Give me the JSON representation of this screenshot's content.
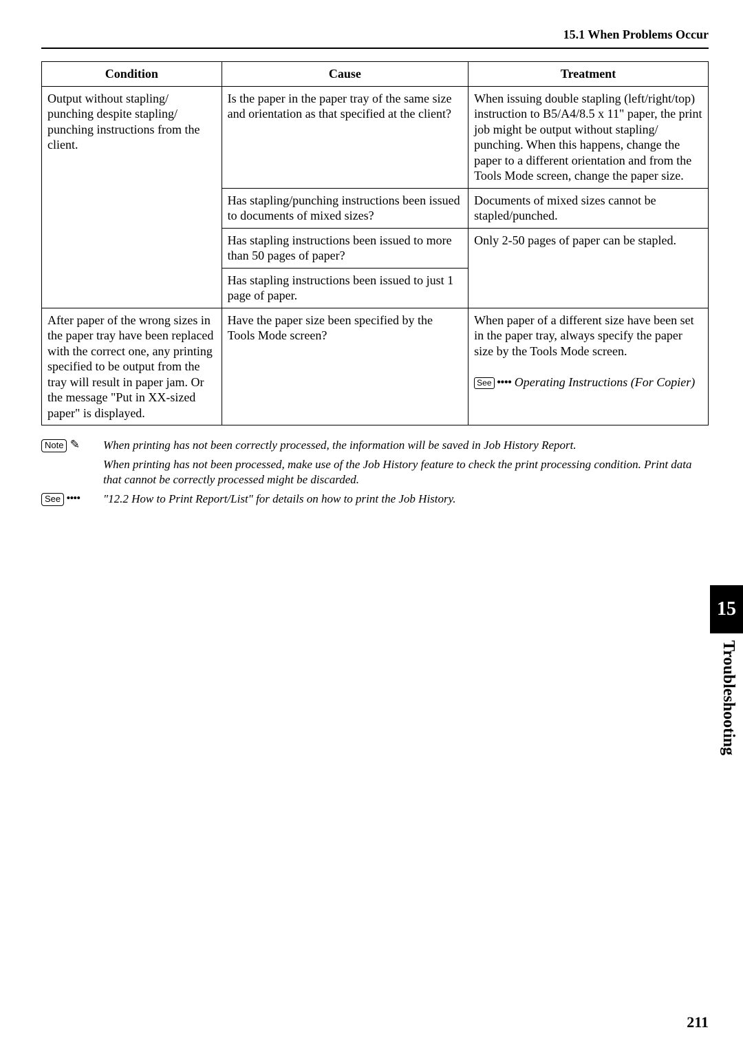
{
  "header": {
    "section_title": "15.1 When Problems Occur"
  },
  "table": {
    "headers": {
      "c1": "Condition",
      "c2": "Cause",
      "c3": "Treatment"
    },
    "r1": {
      "condition": "Output without stapling/ punching despite stapling/ punching instructions from the client.",
      "cause": "Is the paper in the paper tray of the same size and orientation as that specified at the client?",
      "treatment": "When issuing double stapling (left/right/top) instruction to B5/A4/8.5 x 11\" paper, the print job might be output without stapling/ punching. When this happens, change the paper to a different orientation and from the Tools Mode screen, change the paper size."
    },
    "r2": {
      "cause": "Has stapling/punching instructions been issued to documents of mixed sizes?",
      "treatment": "Documents of mixed sizes cannot be stapled/punched."
    },
    "r3": {
      "cause": "Has stapling instructions been issued to more than 50 pages of paper?",
      "treatment": "Only 2-50 pages of paper can be stapled."
    },
    "r4": {
      "cause": "Has stapling instructions been issued to just 1 page of paper."
    },
    "r5": {
      "condition": "After paper of the wrong sizes in the paper tray have been replaced with the correct one, any printing specified to be output from the tray will result in paper jam. Or the message \"Put in XX-sized paper\" is displayed.",
      "cause": "Have the paper size been specified by the Tools Mode screen?",
      "treatment_line1": "When paper of a different size have been set in the paper tray, always specify the paper size by the Tools Mode screen.",
      "see_label": "See",
      "see_ref": "Operating Instructions (For Copier)"
    }
  },
  "notes": {
    "note_label": "Note",
    "n1": "When printing has not been correctly processed, the information will be saved in Job History Report.",
    "n2": "When printing has not been processed, make use of the Job History feature to check the print processing condition. Print data that cannot be correctly processed might be discarded.",
    "see_label": "See",
    "see_text": "\"12.2 How to Print Report/List\" for details on how to print the Job History."
  },
  "sidebar": {
    "chapter": "15",
    "label": "Troubleshooting"
  },
  "page_number": "211"
}
